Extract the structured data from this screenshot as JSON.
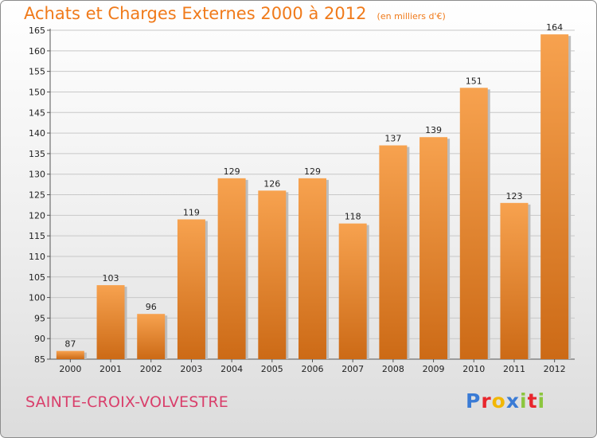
{
  "chart_data": {
    "type": "bar",
    "title": "Achats et Charges Externes 2000 à 2012",
    "unit": "(en milliers d'€)",
    "categories": [
      "2000",
      "2001",
      "2002",
      "2003",
      "2004",
      "2005",
      "2006",
      "2007",
      "2008",
      "2009",
      "2010",
      "2011",
      "2012"
    ],
    "values": [
      87,
      103,
      96,
      119,
      129,
      126,
      129,
      118,
      137,
      139,
      151,
      123,
      164
    ],
    "ylim": [
      85,
      165
    ],
    "yticks": [
      85,
      90,
      95,
      100,
      105,
      110,
      115,
      120,
      125,
      130,
      135,
      140,
      145,
      150,
      155,
      160,
      165
    ],
    "grid": true,
    "colors": {
      "bar_light": "#f7a24f",
      "bar_dark": "#cc6a16",
      "grid": "#c8c8c8"
    }
  },
  "commune": "SAINTE-CROIX-VOLVESTRE",
  "logo": {
    "letters": [
      "P",
      "r",
      "o",
      "x",
      "i",
      "t",
      "i"
    ],
    "colors": [
      "#3a7bd5",
      "#e8262d",
      "#f2b705",
      "#3a7bd5",
      "#8cc63f",
      "#e8262d",
      "#8cc63f"
    ]
  }
}
